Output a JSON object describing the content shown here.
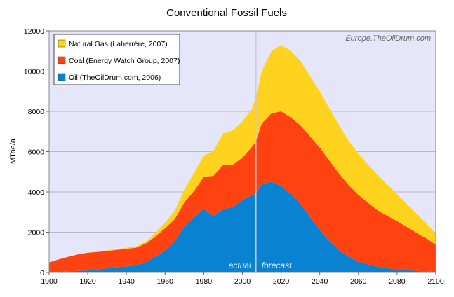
{
  "chart_data": {
    "type": "area",
    "stacked": true,
    "title": "Conventional Fossil Fuels",
    "xlabel": "",
    "ylabel": "MToe/a",
    "xlim": [
      1900,
      2100
    ],
    "ylim": [
      0,
      12000
    ],
    "xticks": [
      1900,
      1920,
      1940,
      1960,
      1980,
      2000,
      2020,
      2040,
      2060,
      2080,
      2100
    ],
    "yticks": [
      0,
      2000,
      4000,
      6000,
      8000,
      10000,
      12000
    ],
    "grid": true,
    "legend_position": "top-left",
    "watermark": "Europe.TheOilDrum.com",
    "divider_year": 2007,
    "period_labels": {
      "actual": "actual",
      "forecast": "forecast"
    },
    "x": [
      1900,
      1905,
      1910,
      1915,
      1920,
      1925,
      1930,
      1935,
      1940,
      1945,
      1950,
      1955,
      1960,
      1965,
      1970,
      1975,
      1980,
      1985,
      1990,
      1995,
      2000,
      2005,
      2007,
      2010,
      2015,
      2020,
      2025,
      2030,
      2035,
      2040,
      2045,
      2050,
      2055,
      2060,
      2065,
      2070,
      2075,
      2080,
      2085,
      2090,
      2095,
      2100
    ],
    "series": [
      {
        "name": "Oil  (TheOilDrum.com, 2006)",
        "color": "#0a82d2",
        "values": [
          20,
          30,
          50,
          80,
          100,
          150,
          200,
          250,
          300,
          350,
          520,
          780,
          1100,
          1550,
          2300,
          2750,
          3150,
          2800,
          3150,
          3250,
          3600,
          3850,
          3920,
          4400,
          4500,
          4300,
          3900,
          3400,
          2750,
          2100,
          1550,
          1100,
          780,
          550,
          400,
          290,
          210,
          150,
          110,
          75,
          50,
          35
        ]
      },
      {
        "name": "Coal  (Energy Watch Group, 2007)",
        "color": "#ff4210",
        "values": [
          480,
          620,
          730,
          820,
          880,
          870,
          870,
          870,
          880,
          880,
          920,
          1000,
          1100,
          1100,
          1200,
          1300,
          1600,
          2000,
          2200,
          2100,
          2100,
          2400,
          2600,
          3000,
          3400,
          3700,
          3800,
          3900,
          4000,
          4100,
          4000,
          3800,
          3550,
          3300,
          3050,
          2800,
          2600,
          2400,
          2150,
          1900,
          1650,
          1350
        ]
      },
      {
        "name": "Natural Gas  (Laherrère, 2007)",
        "color": "#ffd21e",
        "values": [
          0,
          0,
          0,
          0,
          5,
          20,
          30,
          40,
          50,
          70,
          100,
          180,
          280,
          420,
          650,
          900,
          1050,
          1250,
          1550,
          1700,
          1800,
          1900,
          2200,
          2600,
          3100,
          3300,
          3300,
          3200,
          3000,
          2800,
          2600,
          2400,
          2200,
          2050,
          1900,
          1750,
          1550,
          1350,
          1150,
          950,
          750,
          550
        ]
      }
    ]
  }
}
